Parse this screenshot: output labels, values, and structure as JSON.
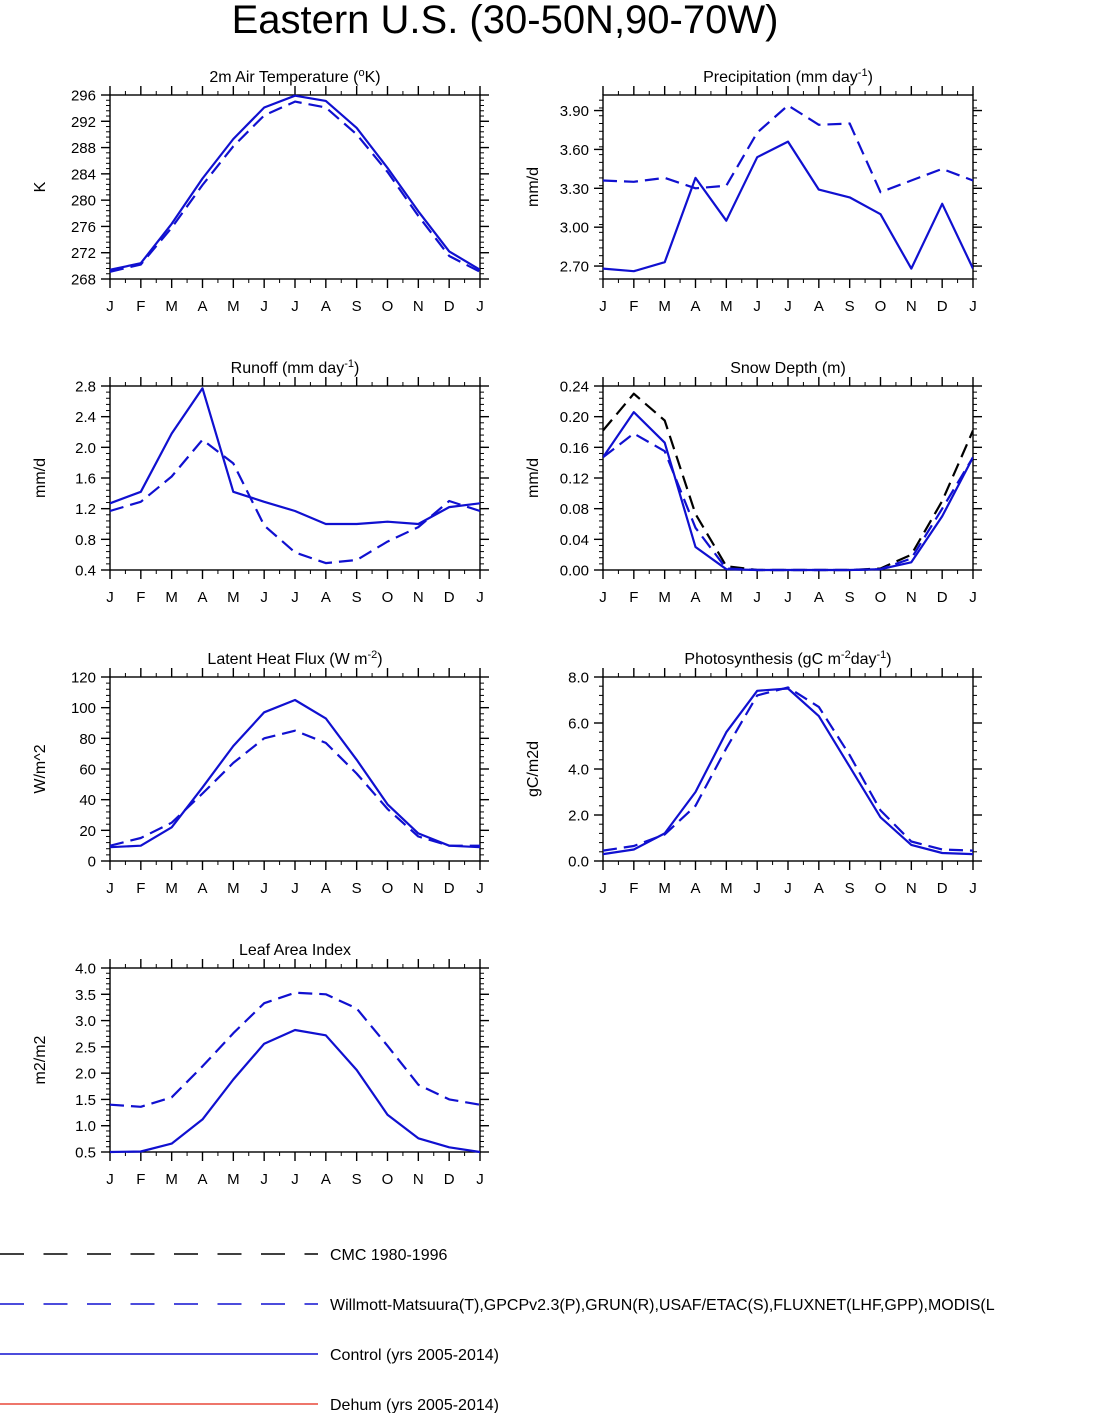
{
  "title": "Eastern U.S. (30-50N,90-70W)",
  "colors": {
    "control": "#1010d0",
    "obs": "#1010d0",
    "cmc": "#000000",
    "dehum": "#e8483a"
  },
  "legend": [
    {
      "label": "CMC 1980-1996",
      "color": "#000000",
      "dash": "dashed"
    },
    {
      "label": "Willmott-Matsuura(T),GPCPv2.3(P),GRUN(R),USAF/ETAC(S),FLUXNET(LHF,GPP),MODIS(L",
      "color": "#1010d0",
      "dash": "dashed"
    },
    {
      "label": "Control (yrs 2005-2014)",
      "color": "#1010d0",
      "dash": "solid"
    },
    {
      "label": "Dehum (yrs 2005-2014)",
      "color": "#e8483a",
      "dash": "solid"
    }
  ],
  "chart_data": [
    {
      "type": "line",
      "title": "2m Air Temperature (°K)",
      "title_parts": [
        [
          "2m Air Temperature (",
          ""
        ],
        [
          "o",
          "sup"
        ],
        [
          "K)",
          ""
        ]
      ],
      "ylabel": "K",
      "categories": [
        "J",
        "F",
        "M",
        "A",
        "M",
        "J",
        "J",
        "A",
        "S",
        "O",
        "N",
        "D",
        "J"
      ],
      "ylim": [
        268,
        296
      ],
      "yticks": [
        268,
        272,
        276,
        280,
        284,
        288,
        292,
        296
      ],
      "ytick_labels": [
        "268",
        "272",
        "276",
        "280",
        "284",
        "288",
        "292",
        "296"
      ],
      "series": [
        {
          "name": "Control (yrs 2005-2014)",
          "dash": "solid",
          "color": "#1010d0",
          "values": [
            269.4,
            270.4,
            276.4,
            283.3,
            289.3,
            294.1,
            295.9,
            295.1,
            291.0,
            284.9,
            278.3,
            272.2,
            269.4
          ]
        },
        {
          "name": "Willmott-Matsuura(T)",
          "dash": "dashed",
          "color": "#1010d0",
          "values": [
            269.1,
            270.2,
            275.8,
            282.3,
            288.2,
            292.9,
            295.0,
            294.1,
            290.0,
            284.3,
            277.6,
            271.5,
            269.1
          ]
        }
      ]
    },
    {
      "type": "line",
      "title": "Precipitation (mm day-1)",
      "title_parts": [
        [
          "Precipitation (mm day",
          ""
        ],
        [
          "-1",
          "sup"
        ],
        [
          ")",
          ""
        ]
      ],
      "ylabel": "mm/d",
      "categories": [
        "J",
        "F",
        "M",
        "A",
        "M",
        "J",
        "J",
        "A",
        "S",
        "O",
        "N",
        "D",
        "J"
      ],
      "ylim": [
        2.6,
        4.02
      ],
      "yticks": [
        2.7,
        3.0,
        3.3,
        3.6,
        3.9
      ],
      "ytick_labels": [
        "2.70",
        "3.00",
        "3.30",
        "3.60",
        "3.90"
      ],
      "series": [
        {
          "name": "Control (yrs 2005-2014)",
          "dash": "solid",
          "color": "#1010d0",
          "values": [
            2.68,
            2.66,
            2.73,
            3.38,
            3.05,
            3.54,
            3.66,
            3.29,
            3.23,
            3.1,
            2.68,
            3.18,
            2.68
          ]
        },
        {
          "name": "GPCPv2.3(P)",
          "dash": "dashed",
          "color": "#1010d0",
          "values": [
            3.36,
            3.35,
            3.38,
            3.3,
            3.32,
            3.73,
            3.94,
            3.79,
            3.8,
            3.27,
            3.36,
            3.45,
            3.36
          ]
        }
      ]
    },
    {
      "type": "line",
      "title": "Runoff (mm day-1)",
      "title_parts": [
        [
          "Runoff (mm day",
          ""
        ],
        [
          "-1",
          "sup"
        ],
        [
          ")",
          ""
        ]
      ],
      "ylabel": "mm/d",
      "categories": [
        "J",
        "F",
        "M",
        "A",
        "M",
        "J",
        "J",
        "A",
        "S",
        "O",
        "N",
        "D",
        "J"
      ],
      "ylim": [
        0.4,
        2.8
      ],
      "yticks": [
        0.4,
        0.8,
        1.2,
        1.6,
        2.0,
        2.4,
        2.8
      ],
      "ytick_labels": [
        "0.4",
        "0.8",
        "1.2",
        "1.6",
        "2.0",
        "2.4",
        "2.8"
      ],
      "series": [
        {
          "name": "Control (yrs 2005-2014)",
          "dash": "solid",
          "color": "#1010d0",
          "values": [
            1.27,
            1.42,
            2.18,
            2.77,
            1.42,
            1.29,
            1.17,
            1.0,
            1.0,
            1.03,
            1.0,
            1.22,
            1.27
          ]
        },
        {
          "name": "GRUN(R)",
          "dash": "dashed",
          "color": "#1010d0",
          "values": [
            1.17,
            1.29,
            1.62,
            2.1,
            1.79,
            0.98,
            0.63,
            0.49,
            0.53,
            0.77,
            0.96,
            1.3,
            1.17
          ]
        }
      ]
    },
    {
      "type": "line",
      "title": "Snow Depth (m)",
      "title_parts": [
        [
          "Snow Depth (m)",
          ""
        ]
      ],
      "ylabel": "mm/d",
      "categories": [
        "J",
        "F",
        "M",
        "A",
        "M",
        "J",
        "J",
        "A",
        "S",
        "O",
        "N",
        "D",
        "J"
      ],
      "ylim": [
        0.0,
        0.24
      ],
      "yticks": [
        0.0,
        0.04,
        0.08,
        0.12,
        0.16,
        0.2,
        0.24
      ],
      "ytick_labels": [
        "0.00",
        "0.04",
        "0.08",
        "0.12",
        "0.16",
        "0.20",
        "0.24"
      ],
      "series": [
        {
          "name": "CMC 1980-1996",
          "dash": "dashed",
          "color": "#000000",
          "values": [
            0.182,
            0.23,
            0.195,
            0.073,
            0.005,
            0.0,
            0.0,
            0.0,
            0.0,
            0.002,
            0.02,
            0.09,
            0.182
          ]
        },
        {
          "name": "Control (yrs 2005-2014)",
          "dash": "solid",
          "color": "#1010d0",
          "values": [
            0.147,
            0.206,
            0.166,
            0.03,
            0.001,
            0.0,
            0.0,
            0.0,
            0.0,
            0.001,
            0.01,
            0.07,
            0.147
          ]
        },
        {
          "name": "USAF/ETAC(S)",
          "dash": "dashed",
          "color": "#1010d0",
          "values": [
            0.147,
            0.178,
            0.155,
            0.055,
            0.002,
            0.0,
            0.0,
            0.0,
            0.0,
            0.001,
            0.015,
            0.08,
            0.147
          ]
        }
      ]
    },
    {
      "type": "line",
      "title": "Latent Heat Flux (W m-2)",
      "title_parts": [
        [
          "Latent Heat Flux (W m",
          ""
        ],
        [
          "-2",
          "sup"
        ],
        [
          ")",
          ""
        ]
      ],
      "ylabel": "W/m^2",
      "categories": [
        "J",
        "F",
        "M",
        "A",
        "M",
        "J",
        "J",
        "A",
        "S",
        "O",
        "N",
        "D",
        "J"
      ],
      "ylim": [
        0,
        120
      ],
      "yticks": [
        0,
        20,
        40,
        60,
        80,
        100,
        120
      ],
      "ytick_labels": [
        "0",
        "20",
        "40",
        "60",
        "80",
        "100",
        "120"
      ],
      "series": [
        {
          "name": "Control (yrs 2005-2014)",
          "dash": "solid",
          "color": "#1010d0",
          "values": [
            9,
            10,
            22,
            48,
            75,
            97,
            105,
            93,
            66,
            37,
            18,
            10,
            9
          ]
        },
        {
          "name": "FLUXNET(LHF)",
          "dash": "dashed",
          "color": "#1010d0",
          "values": [
            10,
            15,
            25,
            44,
            64,
            80,
            85,
            77,
            57,
            34,
            16,
            10,
            10
          ]
        }
      ]
    },
    {
      "type": "line",
      "title": "Photosynthesis (gC m-2day-1)",
      "title_parts": [
        [
          "Photosynthesis (gC m",
          ""
        ],
        [
          "-2",
          "sup"
        ],
        [
          "day",
          ""
        ],
        [
          "-1",
          "sup"
        ],
        [
          ")",
          ""
        ]
      ],
      "ylabel": "gC/m2d",
      "categories": [
        "J",
        "F",
        "M",
        "A",
        "M",
        "J",
        "J",
        "A",
        "S",
        "O",
        "N",
        "D",
        "J"
      ],
      "ylim": [
        0,
        8
      ],
      "yticks": [
        0,
        2,
        4,
        6,
        8
      ],
      "ytick_labels": [
        "0.0",
        "2.0",
        "4.0",
        "6.0",
        "8.0"
      ],
      "series": [
        {
          "name": "Control (yrs 2005-2014)",
          "dash": "solid",
          "color": "#1010d0",
          "values": [
            0.3,
            0.5,
            1.2,
            3.0,
            5.6,
            7.4,
            7.5,
            6.3,
            4.1,
            1.9,
            0.7,
            0.35,
            0.3
          ]
        },
        {
          "name": "FLUXNET(GPP)",
          "dash": "dashed",
          "color": "#1010d0",
          "values": [
            0.45,
            0.65,
            1.15,
            2.4,
            4.9,
            7.2,
            7.55,
            6.7,
            4.6,
            2.2,
            0.85,
            0.5,
            0.45
          ]
        }
      ]
    },
    {
      "type": "line",
      "title": "Leaf Area Index",
      "title_parts": [
        [
          "Leaf Area Index",
          ""
        ]
      ],
      "ylabel": "m2/m2",
      "categories": [
        "J",
        "F",
        "M",
        "A",
        "M",
        "J",
        "J",
        "A",
        "S",
        "O",
        "N",
        "D",
        "J"
      ],
      "ylim": [
        0.5,
        4.0
      ],
      "yticks": [
        0.5,
        1.0,
        1.5,
        2.0,
        2.5,
        3.0,
        3.5,
        4.0
      ],
      "ytick_labels": [
        "0.5",
        "1.0",
        "1.5",
        "2.0",
        "2.5",
        "3.0",
        "3.5",
        "4.0"
      ],
      "series": [
        {
          "name": "Control (yrs 2005-2014)",
          "dash": "solid",
          "color": "#1010d0",
          "values": [
            0.5,
            0.51,
            0.66,
            1.12,
            1.88,
            2.56,
            2.82,
            2.72,
            2.06,
            1.21,
            0.76,
            0.59,
            0.5
          ]
        },
        {
          "name": "MODIS(LAI)",
          "dash": "dashed",
          "color": "#1010d0",
          "values": [
            1.4,
            1.36,
            1.54,
            2.13,
            2.76,
            3.33,
            3.53,
            3.5,
            3.23,
            2.52,
            1.78,
            1.5,
            1.4
          ]
        }
      ]
    }
  ]
}
